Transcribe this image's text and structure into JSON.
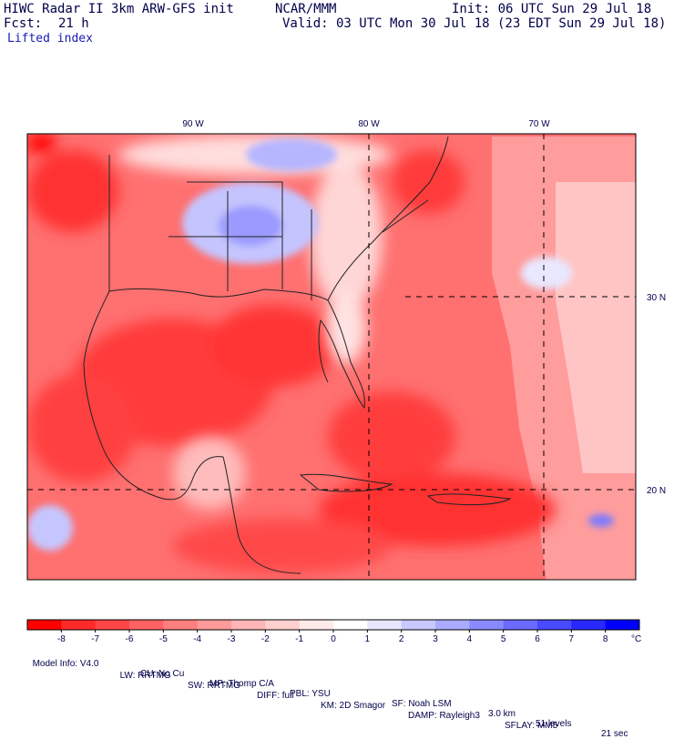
{
  "header": {
    "title_left": "HIWC Radar II 3km ARW-GFS init",
    "org": "NCAR/MMM",
    "init": "Init: 06 UTC Sun 29 Jul 18",
    "fcst_label": "Fcst:",
    "fcst_value": "21 h",
    "valid": "Valid: 03 UTC Mon 30 Jul 18 (23 EDT Sun 29 Jul 18)",
    "field": "Lifted index"
  },
  "map": {
    "lon_labels": [
      "90 W",
      "80 W",
      "70 W"
    ],
    "lat_labels": [
      "30 N",
      "20 N"
    ]
  },
  "colorbar": {
    "unit": "°C",
    "tick_labels": [
      "-8",
      "-7",
      "-6",
      "-5",
      "-4",
      "-3",
      "-2",
      "-1",
      "0",
      "1",
      "2",
      "3",
      "4",
      "5",
      "6",
      "7",
      "8"
    ],
    "colors": [
      "#ff0000",
      "#ff2a2a",
      "#ff4545",
      "#ff6262",
      "#ff7f7f",
      "#ff9a9a",
      "#ffb5b5",
      "#ffd0d0",
      "#ffeaea",
      "#ffffff",
      "#e6e6ff",
      "#c8c8ff",
      "#aaaaff",
      "#8a8aff",
      "#6a6aff",
      "#4a4aff",
      "#2828ff",
      "#0000ff"
    ]
  },
  "footer": {
    "line1": [
      {
        "key": "model-info",
        "text": "Model Info: V4.0"
      },
      {
        "key": "cu",
        "text": "CU: No Cu"
      },
      {
        "key": "mp",
        "text": "MP: Thomp C/A"
      },
      {
        "key": "pbl",
        "text": "PBL: YSU"
      },
      {
        "key": "sf",
        "text": "SF: Noah LSM"
      },
      {
        "key": "res",
        "text": "3.0 km"
      },
      {
        "key": "levels",
        "text": "51 levels"
      },
      {
        "key": "dt",
        "text": "21 sec"
      }
    ],
    "line2": [
      {
        "key": "lw",
        "text": "LW: RRTMG"
      },
      {
        "key": "sw",
        "text": "SW: RRTMG"
      },
      {
        "key": "diff",
        "text": "DIFF: full"
      },
      {
        "key": "km",
        "text": "KM: 2D Smagor"
      },
      {
        "key": "damp",
        "text": "DAMP: Rayleigh3"
      },
      {
        "key": "sflay",
        "text": "SFLAY: MM5"
      }
    ]
  }
}
